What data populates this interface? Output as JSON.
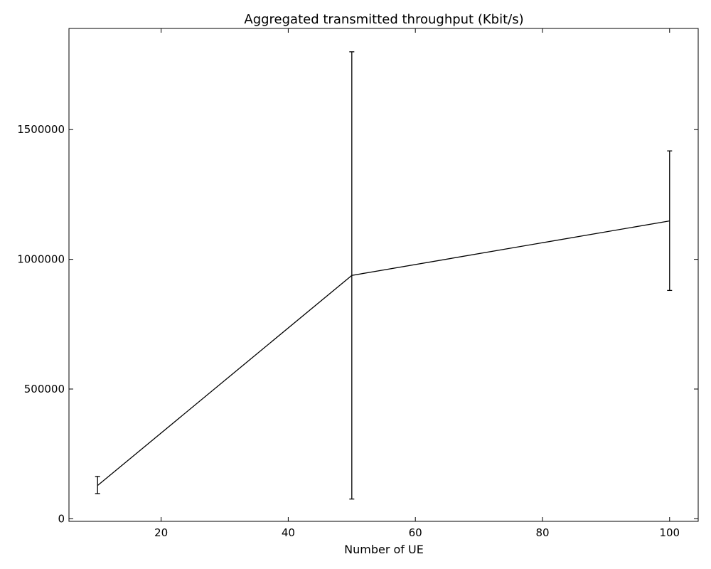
{
  "chart_data": {
    "type": "line",
    "title": "Aggregated transmitted throughput (Kbit/s)",
    "xlabel": "Number of UE",
    "ylabel": "",
    "xlim": [
      5.5,
      104.5
    ],
    "ylim": [
      -10000,
      1890000
    ],
    "x_ticks": [
      20,
      40,
      60,
      80,
      100
    ],
    "y_ticks": [
      0,
      500000,
      1000000,
      1500000
    ],
    "grid": false,
    "color": "#000000",
    "series": [
      {
        "x": [
          10,
          50,
          100
        ],
        "y": [
          128000,
          938000,
          1148000
        ],
        "y_err_low": [
          97000,
          76000,
          880000
        ],
        "y_err_high": [
          163000,
          1800000,
          1418000
        ]
      }
    ]
  }
}
